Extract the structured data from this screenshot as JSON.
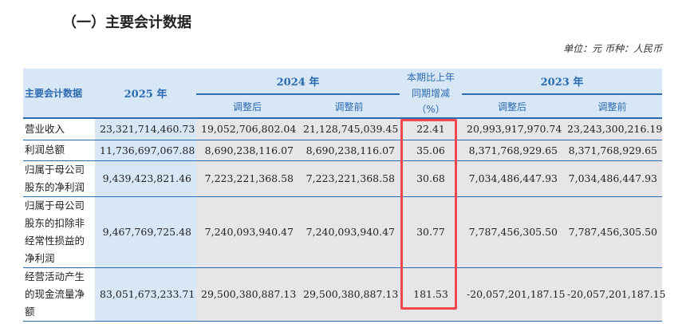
{
  "title": "（一）主要会计数据",
  "unit": "单位：元  币种：人民币",
  "header": {
    "item": "主要会计数据",
    "y2025": "2025 年",
    "y2024": "2024 年",
    "change": "本期比上年同期增减",
    "change_unit": "（%）",
    "y2023": "2023 年",
    "adjusted_after": "调整后",
    "adjusted_before": "调整前"
  },
  "rows": [
    {
      "label": "营业收入",
      "v2025": "23,321,714,460.73",
      "v2024a": "19,052,706,802.04",
      "v2024b": "21,128,745,039.45",
      "chg": "22.41",
      "v2023a": "20,993,917,970.74",
      "v2023b": "23,243,300,216.19"
    },
    {
      "label": "利润总额",
      "v2025": "11,736,697,067.88",
      "v2024a": "8,690,238,116.07",
      "v2024b": "8,690,238,116.07",
      "chg": "35.06",
      "v2023a": "8,371,768,929.65",
      "v2023b": "8,371,768,929.65"
    },
    {
      "label": "归属于母公司股东的净利润",
      "v2025": "9,439,423,821.46",
      "v2024a": "7,223,221,368.58",
      "v2024b": "7,223,221,368.58",
      "chg": "30.68",
      "v2023a": "7,034,486,447.93",
      "v2023b": "7,034,486,447.93"
    },
    {
      "label": "归属于母公司股东的扣除非经常性损益的净利润",
      "v2025": "9,467,769,725.48",
      "v2024a": "7,240,093,940.47",
      "v2024b": "7,240,093,940.47",
      "chg": "30.77",
      "v2023a": "7,787,456,305.50",
      "v2023b": "7,787,456,305.50"
    },
    {
      "label": "经营活动产生的现金流量净额",
      "v2025": "83,051,673,233.71",
      "v2024a": "29,500,380,887.13",
      "v2024b": "29,500,380,887.13",
      "chg": "181.53",
      "v2023a": "-20,057,201,187.15",
      "v2023b": "-20,057,201,187.15"
    }
  ],
  "highlight_color": "#f0484c"
}
